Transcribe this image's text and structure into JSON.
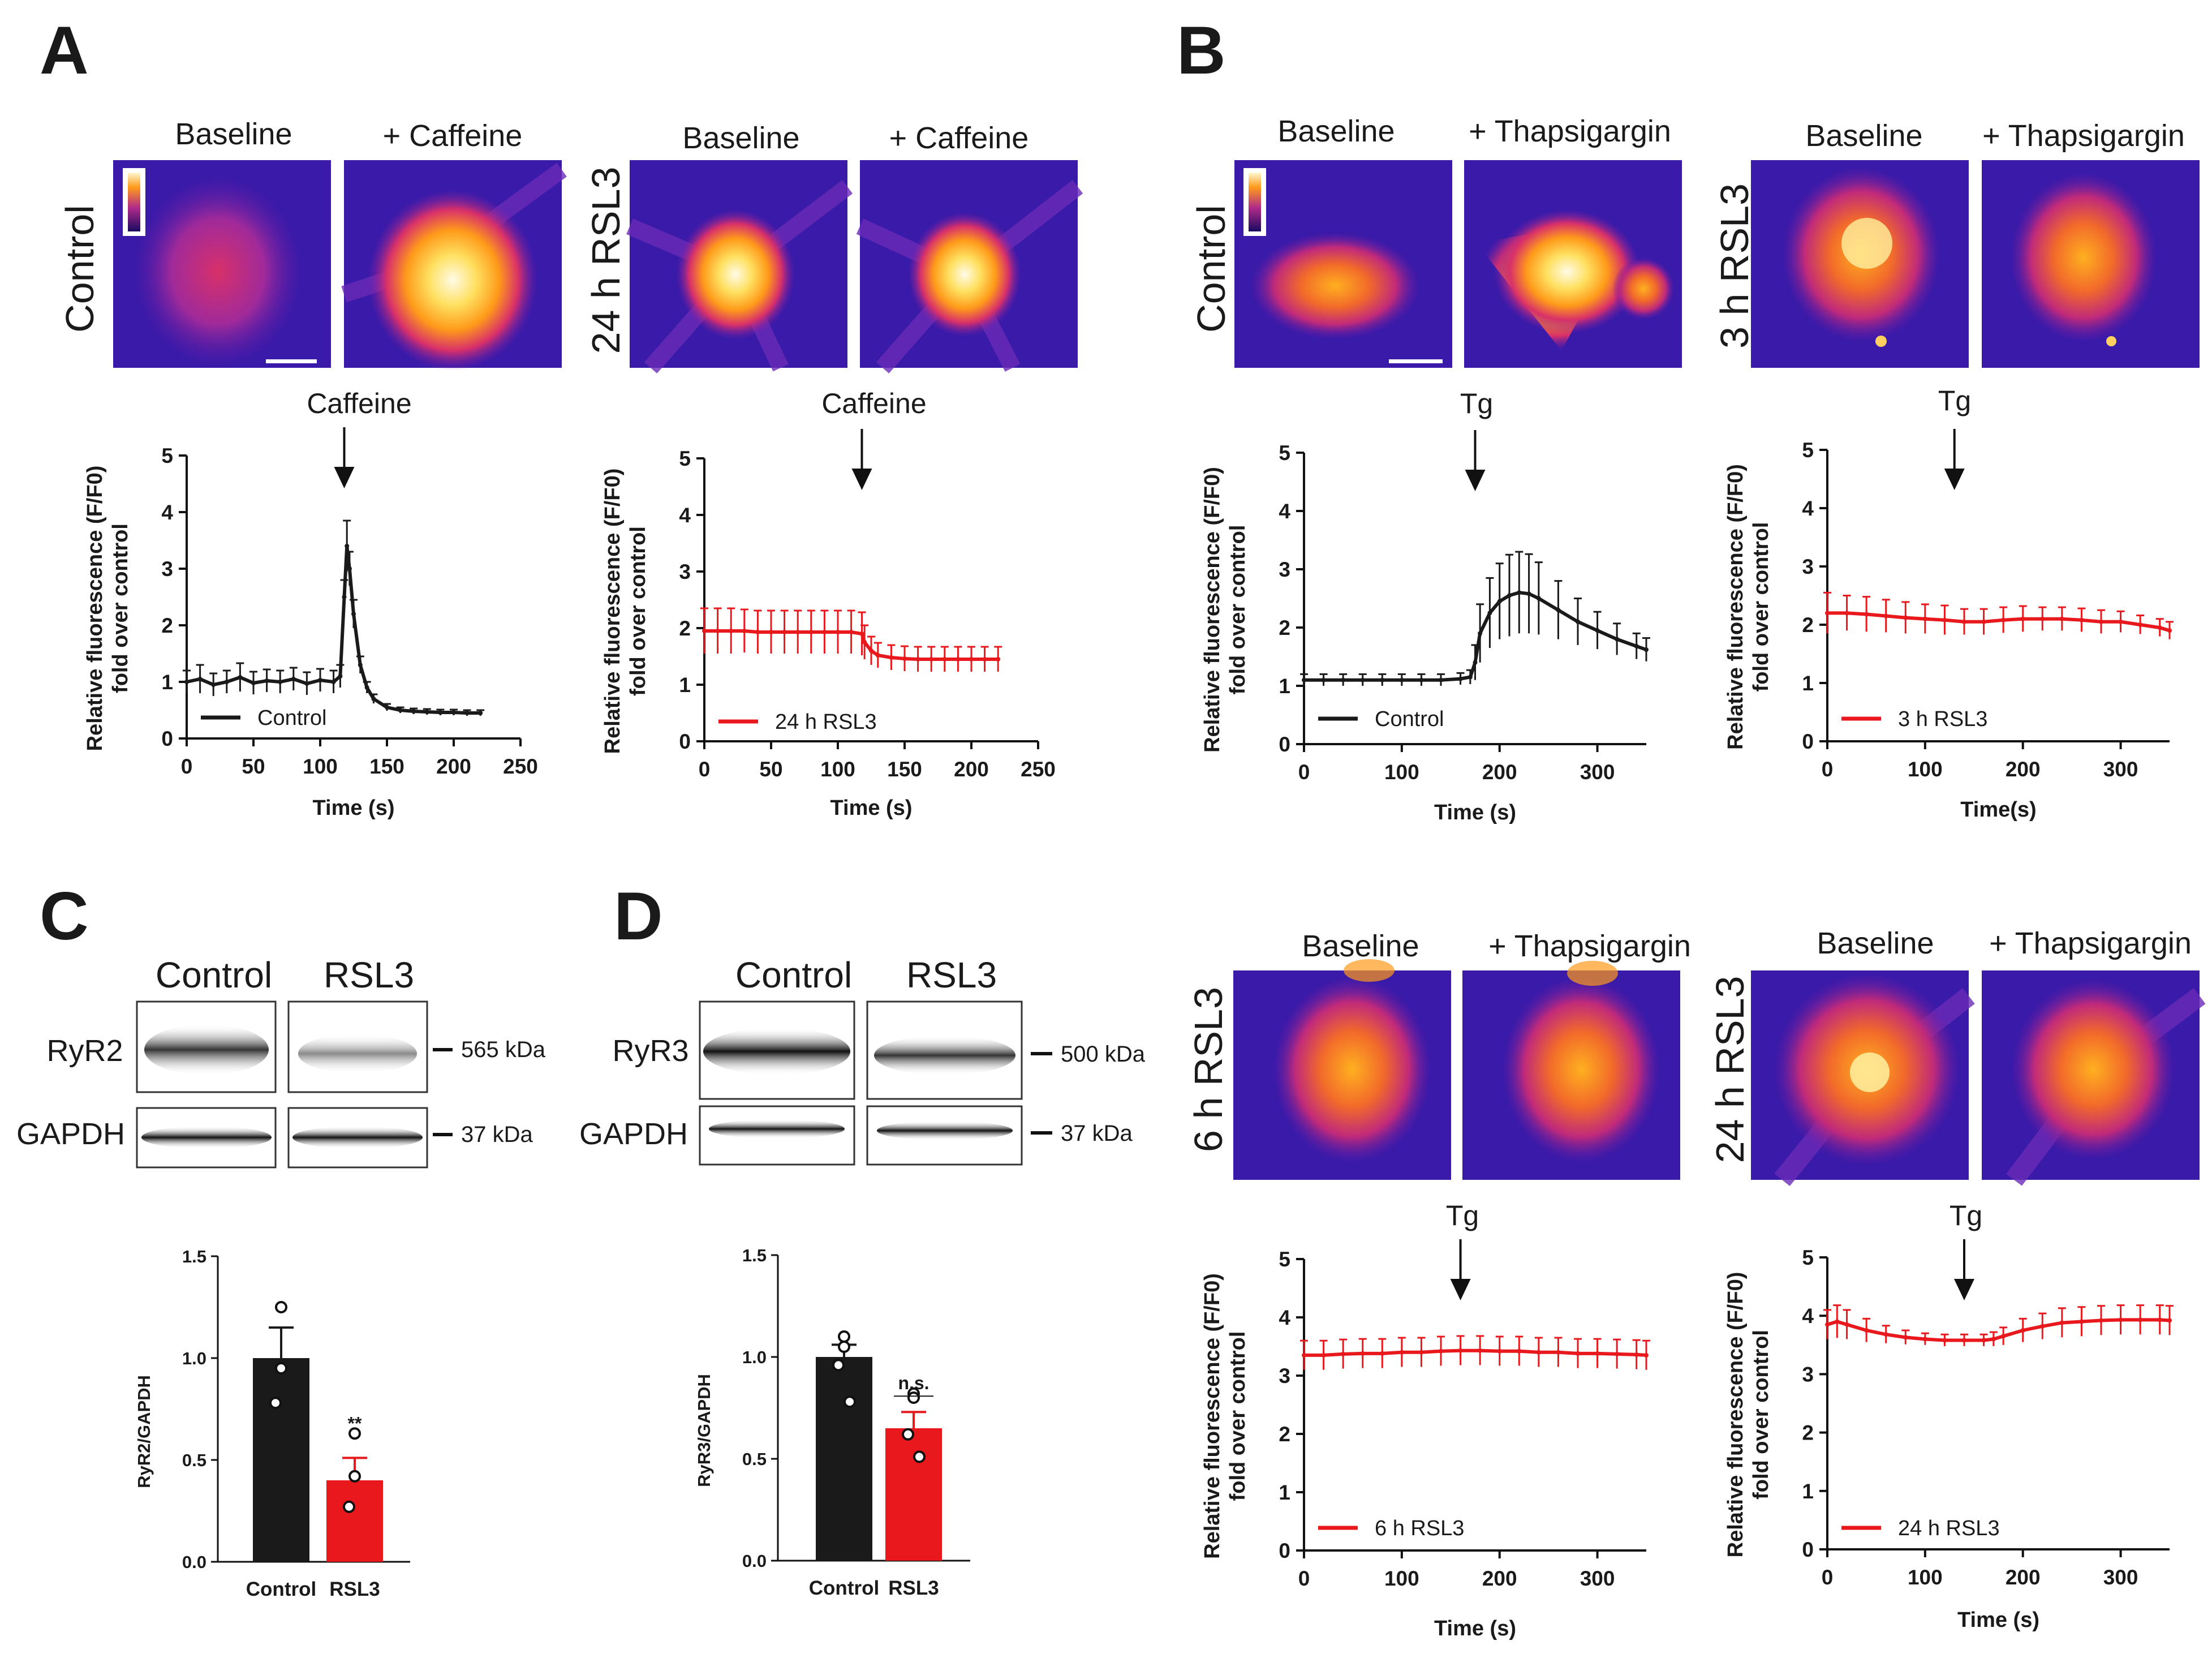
{
  "panels": {
    "A": {
      "letter": "A",
      "control": {
        "row_label": "Control",
        "img_labels": [
          "Baseline",
          "+ Caffeine"
        ],
        "drug": "Caffeine",
        "legend": "Control"
      },
      "rsl24": {
        "row_label": "24 h RSL3",
        "img_labels": [
          "Baseline",
          "+ Caffeine"
        ],
        "drug": "Caffeine",
        "legend": "24 h RSL3"
      }
    },
    "B": {
      "letter": "B",
      "control": {
        "row_label": "Control",
        "img_labels": [
          "Baseline",
          "+ Thapsigargin"
        ],
        "drug": "Tg",
        "legend": "Control"
      },
      "rsl3h": {
        "row_label": "3 h RSL3",
        "img_labels": [
          "Baseline",
          "+ Thapsigargin"
        ],
        "drug": "Tg",
        "legend": "3 h RSL3"
      },
      "rsl6h": {
        "row_label": "6 h RSL3",
        "img_labels": [
          "Baseline",
          "+ Thapsigargin"
        ],
        "drug": "Tg",
        "legend": "6 h RSL3"
      },
      "rsl24h": {
        "row_label": "24 h RSL3",
        "img_labels": [
          "Baseline",
          "+ Thapsigargin"
        ],
        "drug": "Tg",
        "legend": "24 h RSL3"
      }
    },
    "C": {
      "letter": "C",
      "lanes": [
        "Control",
        "RSL3"
      ],
      "protein": "RyR2",
      "protein_kda": "565 kDa",
      "loading": "GAPDH",
      "loading_kda": "37 kDa"
    },
    "D": {
      "letter": "D",
      "lanes": [
        "Control",
        "RSL3"
      ],
      "protein": "RyR3",
      "protein_kda": "500 kDa",
      "loading": "GAPDH",
      "loading_kda": "37 kDa"
    }
  },
  "colors": {
    "control": "#1a1a1a",
    "rsl3": "#e8181c",
    "heat_bg": "#3a1aa8",
    "heat_mid": "#b02a8a",
    "heat_hot": "#ffb400"
  },
  "chart_data": [
    {
      "id": "A-control",
      "type": "line",
      "x": [
        0,
        10,
        20,
        30,
        40,
        50,
        60,
        70,
        80,
        90,
        100,
        110,
        115,
        118,
        120,
        122,
        125,
        130,
        135,
        140,
        150,
        160,
        170,
        180,
        190,
        200,
        210,
        220
      ],
      "y": [
        1.0,
        1.05,
        0.95,
        1.0,
        1.08,
        0.98,
        1.02,
        1.0,
        1.05,
        0.97,
        1.03,
        1.0,
        1.1,
        2.5,
        3.4,
        3.0,
        2.2,
        1.3,
        0.9,
        0.7,
        0.55,
        0.5,
        0.48,
        0.47,
        0.46,
        0.46,
        0.45,
        0.45
      ],
      "err": [
        0.2,
        0.25,
        0.2,
        0.2,
        0.25,
        0.2,
        0.2,
        0.2,
        0.2,
        0.2,
        0.2,
        0.2,
        0.2,
        0.3,
        0.45,
        0.3,
        0.25,
        0.15,
        0.1,
        0.08,
        0.06,
        0.05,
        0.05,
        0.05,
        0.05,
        0.05,
        0.05,
        0.05
      ],
      "series_name": "Control",
      "xlabel": "Time (s)",
      "ylabel": "Relative fluorescence (F/F0)\nfold over control",
      "xlim": [
        0,
        250
      ],
      "ylim": [
        0,
        5
      ],
      "xticks": [
        0,
        50,
        100,
        150,
        200,
        250
      ],
      "yticks": [
        0,
        1,
        2,
        3,
        4,
        5
      ],
      "arrow_x": 118
    },
    {
      "id": "A-rsl3-24h",
      "type": "line",
      "x": [
        0,
        10,
        20,
        30,
        40,
        50,
        60,
        70,
        80,
        90,
        100,
        110,
        118,
        120,
        125,
        130,
        140,
        150,
        160,
        170,
        180,
        190,
        200,
        210,
        220
      ],
      "y": [
        1.95,
        1.95,
        1.95,
        1.95,
        1.93,
        1.93,
        1.93,
        1.93,
        1.93,
        1.93,
        1.93,
        1.93,
        1.9,
        1.75,
        1.6,
        1.52,
        1.48,
        1.46,
        1.45,
        1.45,
        1.45,
        1.45,
        1.45,
        1.45,
        1.45
      ],
      "err": [
        0.4,
        0.4,
        0.4,
        0.38,
        0.38,
        0.38,
        0.38,
        0.38,
        0.38,
        0.38,
        0.38,
        0.38,
        0.38,
        0.3,
        0.25,
        0.22,
        0.22,
        0.22,
        0.22,
        0.22,
        0.22,
        0.22,
        0.22,
        0.22,
        0.22
      ],
      "series_name": "24 h RSL3",
      "xlabel": "Time (s)",
      "ylabel": "Relative fluorescence (F/F0)\nfold over control",
      "xlim": [
        0,
        250
      ],
      "ylim": [
        0,
        5
      ],
      "xticks": [
        0,
        50,
        100,
        150,
        200,
        250
      ],
      "yticks": [
        0,
        1,
        2,
        3,
        4,
        5
      ],
      "arrow_x": 118
    },
    {
      "id": "B-control",
      "type": "line",
      "x": [
        0,
        20,
        40,
        60,
        80,
        100,
        120,
        140,
        160,
        170,
        175,
        180,
        190,
        200,
        210,
        220,
        230,
        240,
        260,
        280,
        300,
        320,
        340,
        350
      ],
      "y": [
        1.1,
        1.1,
        1.1,
        1.1,
        1.1,
        1.1,
        1.1,
        1.1,
        1.12,
        1.15,
        1.4,
        1.9,
        2.25,
        2.45,
        2.55,
        2.6,
        2.58,
        2.5,
        2.3,
        2.1,
        1.95,
        1.8,
        1.68,
        1.62
      ],
      "err": [
        0.1,
        0.1,
        0.1,
        0.1,
        0.1,
        0.1,
        0.1,
        0.1,
        0.1,
        0.12,
        0.3,
        0.5,
        0.6,
        0.65,
        0.7,
        0.7,
        0.68,
        0.62,
        0.5,
        0.4,
        0.32,
        0.27,
        0.22,
        0.2
      ],
      "series_name": "Control",
      "xlabel": "Time (s)",
      "ylabel": "Relative fluorescence (F/F0)\nfold over control",
      "xlim": [
        0,
        350
      ],
      "ylim": [
        0,
        5
      ],
      "xticks": [
        0,
        100,
        200,
        300
      ],
      "yticks": [
        0,
        1,
        2,
        3,
        4,
        5
      ],
      "arrow_x": 175
    },
    {
      "id": "B-rsl3-3h",
      "type": "line",
      "x": [
        0,
        20,
        40,
        60,
        80,
        100,
        120,
        140,
        160,
        180,
        200,
        220,
        240,
        260,
        280,
        300,
        320,
        340,
        350
      ],
      "y": [
        2.2,
        2.2,
        2.18,
        2.15,
        2.12,
        2.1,
        2.08,
        2.05,
        2.05,
        2.08,
        2.1,
        2.1,
        2.1,
        2.08,
        2.05,
        2.05,
        2.0,
        1.95,
        1.9
      ],
      "err": [
        0.35,
        0.3,
        0.3,
        0.28,
        0.27,
        0.25,
        0.25,
        0.22,
        0.22,
        0.22,
        0.22,
        0.2,
        0.2,
        0.2,
        0.2,
        0.18,
        0.16,
        0.15,
        0.15
      ],
      "series_name": "3 h RSL3",
      "xlabel": "Time(s)",
      "ylabel": "Relative fluorescence (F/F0)\nfold over control",
      "xlim": [
        0,
        350
      ],
      "ylim": [
        0,
        5
      ],
      "xticks": [
        0,
        100,
        200,
        300
      ],
      "yticks": [
        0,
        1,
        2,
        3,
        4,
        5
      ],
      "arrow_x": 130
    },
    {
      "id": "B-rsl3-6h",
      "type": "line",
      "x": [
        0,
        20,
        40,
        60,
        80,
        100,
        120,
        140,
        160,
        180,
        200,
        220,
        240,
        260,
        280,
        300,
        320,
        340,
        350
      ],
      "y": [
        3.35,
        3.35,
        3.37,
        3.38,
        3.38,
        3.4,
        3.4,
        3.42,
        3.43,
        3.43,
        3.42,
        3.42,
        3.4,
        3.4,
        3.38,
        3.38,
        3.37,
        3.36,
        3.35
      ],
      "err": [
        0.25,
        0.25,
        0.25,
        0.25,
        0.25,
        0.25,
        0.25,
        0.25,
        0.25,
        0.25,
        0.25,
        0.25,
        0.25,
        0.25,
        0.25,
        0.25,
        0.25,
        0.25,
        0.25
      ],
      "series_name": "6 h RSL3",
      "xlabel": "Time (s)",
      "ylabel": "Relative fluorescence (F/F0)\nfold over control",
      "xlim": [
        0,
        350
      ],
      "ylim": [
        0,
        5
      ],
      "xticks": [
        0,
        100,
        200,
        300
      ],
      "yticks": [
        0,
        1,
        2,
        3,
        4,
        5
      ],
      "arrow_x": 160
    },
    {
      "id": "B-rsl3-24h",
      "type": "line",
      "x": [
        0,
        10,
        20,
        40,
        60,
        80,
        100,
        120,
        140,
        160,
        170,
        180,
        200,
        220,
        240,
        260,
        280,
        300,
        320,
        340,
        350
      ],
      "y": [
        3.85,
        3.9,
        3.85,
        3.75,
        3.68,
        3.63,
        3.6,
        3.58,
        3.58,
        3.58,
        3.6,
        3.65,
        3.75,
        3.82,
        3.88,
        3.9,
        3.92,
        3.93,
        3.93,
        3.93,
        3.92
      ],
      "err": [
        0.25,
        0.28,
        0.25,
        0.2,
        0.15,
        0.12,
        0.1,
        0.1,
        0.1,
        0.1,
        0.12,
        0.15,
        0.2,
        0.22,
        0.25,
        0.25,
        0.25,
        0.25,
        0.25,
        0.25,
        0.25
      ],
      "series_name": "24 h RSL3",
      "xlabel": "Time (s)",
      "ylabel": "Relative fluorescence (F/F0)\nfold over control",
      "xlim": [
        0,
        350
      ],
      "ylim": [
        0,
        5
      ],
      "xticks": [
        0,
        100,
        200,
        300
      ],
      "yticks": [
        0,
        1,
        2,
        3,
        4,
        5
      ],
      "arrow_x": 140
    },
    {
      "id": "C-bar",
      "type": "bar",
      "categories": [
        "Control",
        "RSL3"
      ],
      "values": [
        1.0,
        0.4
      ],
      "sem": [
        0.15,
        0.11
      ],
      "points": [
        [
          1.25,
          0.95,
          0.78
        ],
        [
          0.63,
          0.42,
          0.27
        ]
      ],
      "ylabel": "RyR2/GAPDH",
      "ylim": [
        0,
        1.5
      ],
      "yticks": [
        0.0,
        0.5,
        1.0,
        1.5
      ],
      "yticklabels": [
        "0.0",
        "0.5",
        "1.0",
        "1.5"
      ],
      "significance": [
        "",
        "**"
      ]
    },
    {
      "id": "D-bar",
      "type": "bar",
      "categories": [
        "Control",
        "RSL3"
      ],
      "values": [
        1.0,
        0.65
      ],
      "sem": [
        0.06,
        0.08
      ],
      "points": [
        [
          1.1,
          1.05,
          0.96,
          0.78
        ],
        [
          0.82,
          0.8,
          0.62,
          0.51
        ]
      ],
      "ylabel": "RyR3/GAPDH",
      "ylim": [
        0,
        1.5
      ],
      "yticks": [
        0.0,
        0.5,
        1.0,
        1.5
      ],
      "yticklabels": [
        "0.0",
        "0.5",
        "1.0",
        "1.5"
      ],
      "significance": [
        "",
        "n.s."
      ]
    }
  ]
}
